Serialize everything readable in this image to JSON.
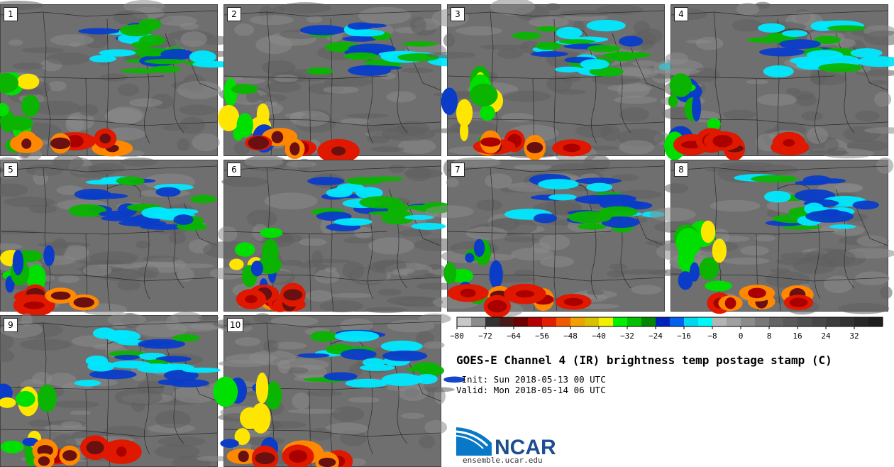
{
  "panels": [
    {
      "label": "1"
    },
    {
      "label": "2"
    },
    {
      "label": "3"
    },
    {
      "label": "4"
    },
    {
      "label": "5"
    },
    {
      "label": "6"
    },
    {
      "label": "7"
    },
    {
      "label": "8"
    },
    {
      "label": "9"
    },
    {
      "label": "10"
    }
  ],
  "colorbar": {
    "colors": [
      "#c8c8c8",
      "#8c8c8c",
      "#333333",
      "#4a1a1a",
      "#700000",
      "#b40000",
      "#e02000",
      "#f05a00",
      "#f0a000",
      "#d8c000",
      "#f0f000",
      "#00f000",
      "#00c000",
      "#008800",
      "#0022bb",
      "#0060f0",
      "#00d8f0",
      "#00f8f8",
      "#b4b4b4",
      "#a0a0a0",
      "#8c8c8c",
      "#787878",
      "#646464",
      "#5a5a5a",
      "#505050",
      "#464646",
      "#3c3c3c",
      "#323232",
      "#282828",
      "#1e1e1e"
    ],
    "tick_labels": [
      "−80",
      "−72",
      "−64",
      "−56",
      "−48",
      "−40",
      "−32",
      "−24",
      "−16",
      "−8",
      "0",
      "8",
      "16",
      "24",
      "32"
    ]
  },
  "title": "GOES-E Channel 4 (IR) brightness temp postage stamp (C)",
  "init_text": " Init: Sun 2018-05-13 00 UTC",
  "valid_text": "Valid: Mon 2018-05-14 06 UTC",
  "logo": {
    "text": "NCAR",
    "url": "ensemble.ucar.edu"
  }
}
